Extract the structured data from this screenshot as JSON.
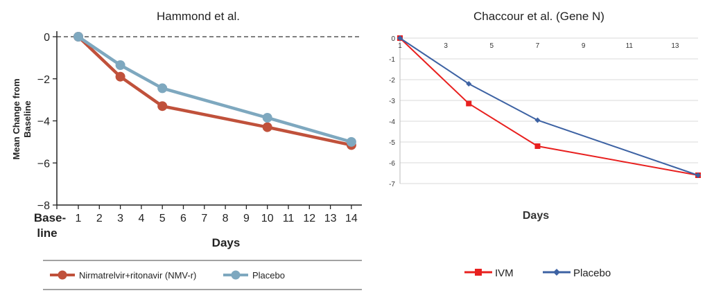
{
  "chart_data": [
    {
      "type": "line",
      "title": "Hammond et al.",
      "ylabel": "Mean Change from Baseline",
      "xlabel": "Days",
      "x_categories": [
        "Base-\nline",
        "1",
        "2",
        "3",
        "4",
        "5",
        "6",
        "7",
        "8",
        "9",
        "10",
        "11",
        "12",
        "13",
        "14"
      ],
      "y_ticks": [
        "0",
        "−2",
        "−4",
        "−6",
        "−8"
      ],
      "ylim": [
        -8,
        0
      ],
      "baseline_dashed": true,
      "series": [
        {
          "name": "Nirmatrelvir+ritonavir (NMV-r)",
          "color": "#c0513b",
          "x": [
            1,
            3,
            5,
            10,
            14
          ],
          "y": [
            0,
            -1.9,
            -3.3,
            -4.3,
            -5.15
          ]
        },
        {
          "name": "Placebo",
          "color": "#7ea8bf",
          "x": [
            1,
            3,
            5,
            10,
            14
          ],
          "y": [
            0,
            -1.35,
            -2.45,
            -3.85,
            -5.0
          ]
        }
      ],
      "legend_position": "bottom"
    },
    {
      "type": "line",
      "title": "Chaccour et al. (Gene N)",
      "xlabel": "Days",
      "x_ticks": [
        "1",
        "3",
        "5",
        "7",
        "9",
        "11",
        "13"
      ],
      "y_ticks": [
        "0",
        "-1",
        "-2",
        "-3",
        "-4",
        "-5",
        "-6",
        "-7"
      ],
      "xlim": [
        1,
        14
      ],
      "ylim": [
        -7,
        0
      ],
      "grid": true,
      "series": [
        {
          "name": "IVM",
          "color": "#e8201f",
          "marker": "square",
          "x": [
            1,
            4,
            7,
            14
          ],
          "y": [
            0,
            -3.15,
            -5.2,
            -6.6
          ]
        },
        {
          "name": "Placebo",
          "color": "#3d62a3",
          "marker": "diamond",
          "x": [
            1,
            4,
            7,
            14
          ],
          "y": [
            0,
            -2.2,
            -3.95,
            -6.6
          ]
        }
      ],
      "legend_position": "bottom"
    }
  ]
}
